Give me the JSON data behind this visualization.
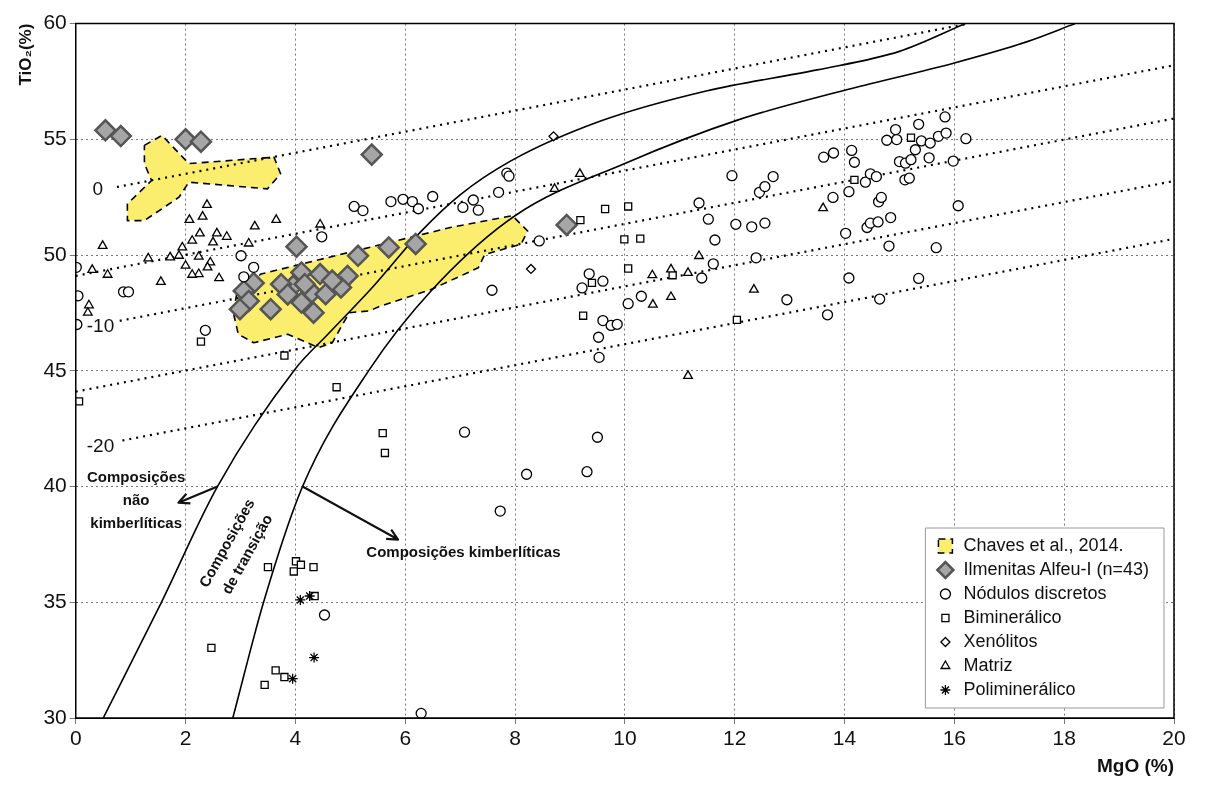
{
  "chart_data": {
    "type": "scatter",
    "xlabel": "MgO (%)",
    "ylabel": "TiO₂(%)",
    "xlim": [
      0,
      20
    ],
    "ylim": [
      30,
      60
    ],
    "xticks": [
      0,
      2,
      4,
      6,
      8,
      10,
      12,
      14,
      16,
      18,
      20
    ],
    "yticks": [
      30,
      35,
      40,
      45,
      50,
      55,
      60
    ],
    "grid": true,
    "legend": "bottom right",
    "annotations": [
      "0",
      "-10",
      "-20",
      {
        "text": "Composições\nnão\nkimberlíticas",
        "x": 2.58,
        "y": 40
      },
      "Composições\nde transição",
      {
        "text": "Composições kimberlíticas",
        "x": 4.13,
        "y": 40
      }
    ],
    "series": [
      {
        "name": "Chaves et al., 2014.",
        "type": "area",
        "color": "#fbee6e",
        "marker": "none",
        "line_style": "dashed",
        "x": [
          2.87,
          2.93,
          3.37,
          6.84,
          7.95,
          8.23,
          8.11,
          7.45,
          7.33,
          6.46,
          5.53,
          5.35,
          4.98,
          4.67,
          4.42,
          3.86,
          3.24,
          2.96,
          2.87
        ],
        "values": [
          47.51,
          48.31,
          49.18,
          51.2,
          51.7,
          51.04,
          50.47,
          50.03,
          49.45,
          48.5,
          47.78,
          47.59,
          47.51,
          46.21,
          46.0,
          46.58,
          46.21,
          46.58,
          47.51
        ]
      },
      {
        "type": "area",
        "color": "#fbee6e",
        "marker": "none",
        "line_style": "dashed",
        "x": [
          1.25,
          1.57,
          2.06,
          3.61,
          3.73,
          3.49,
          2.06,
          1.88,
          1.25,
          0.94,
          0.94,
          1.38,
          1.25,
          1.25
        ],
        "values": [
          54.74,
          55.17,
          53.95,
          54.23,
          53.51,
          52.86,
          53.15,
          52.5,
          51.49,
          51.49,
          52.21,
          53.22,
          53.95,
          54.74
        ]
      },
      {
        "type": "line",
        "color": "#000000",
        "marker": "none",
        "line_style": "solid",
        "x": [
          0.5,
          1.56,
          2.58,
          3.99,
          4.6,
          5.4,
          6.28,
          7.0,
          7.95,
          9.57,
          11.5,
          13.5,
          15.0,
          16.2
        ],
        "values": [
          30,
          35,
          40,
          45.06,
          46.6,
          48.6,
          51.0,
          52.6,
          54.1,
          55.8,
          57.1,
          58.0,
          58.8,
          60
        ]
      },
      {
        "type": "line",
        "color": "#000000",
        "marker": "none",
        "line_style": "solid",
        "x": [
          2.86,
          3.42,
          4.13,
          5.35,
          6.47,
          8.0,
          10.0,
          12.05,
          13.97,
          16.0,
          17.3,
          18.2
        ],
        "values": [
          30,
          35,
          40,
          45.06,
          48.45,
          51.7,
          53.96,
          55.83,
          57.1,
          58.3,
          59.2,
          60
        ]
      },
      {
        "type": "line",
        "color": "#000000",
        "marker": "none",
        "line_style": "dotted",
        "x": [
          0.75,
          16.26
        ],
        "values": [
          52.94,
          60
        ]
      },
      {
        "type": "line",
        "color": "#000000",
        "marker": "none",
        "line_style": "dotted",
        "x": [
          0,
          20
        ],
        "values": [
          49.1,
          58.2
        ]
      },
      {
        "type": "line",
        "color": "#000000",
        "marker": "none",
        "line_style": "dotted",
        "x": [
          0.8,
          20
        ],
        "values": [
          47.16,
          55.9
        ]
      },
      {
        "type": "line",
        "color": "#000000",
        "marker": "none",
        "line_style": "dotted",
        "x": [
          0,
          20
        ],
        "values": [
          44.1,
          53.2
        ]
      },
      {
        "type": "line",
        "color": "#000000",
        "marker": "none",
        "line_style": "dotted",
        "x": [
          0.85,
          20
        ],
        "values": [
          41.99,
          50.7
        ]
      },
      {
        "name": "Ilmenitas Alfeu-I (n=43)",
        "color": "#a6a6a6",
        "marker": "diamond",
        "x": [
          0.54,
          0.82,
          2.0,
          2.28,
          5.39,
          4.02,
          5.14,
          5.7,
          6.19,
          3.24,
          3.06,
          3.15,
          2.99,
          3.55,
          4.11,
          4.45,
          4.95,
          4.83,
          3.96,
          4.3,
          4.55,
          4.11,
          4.33,
          4.17,
          8.94,
          3.74,
          4.67,
          3.86
        ],
        "values": [
          55.39,
          55.14,
          55.0,
          54.9,
          54.34,
          50.36,
          49.97,
          50.33,
          50.48,
          48.79,
          48.45,
          48.02,
          47.66,
          47.66,
          49.25,
          49.18,
          49.1,
          48.6,
          48.67,
          48.38,
          48.31,
          47.95,
          47.51,
          48.74,
          51.3,
          48.74,
          48.9,
          48.3
        ]
      },
      {
        "name": "Nódulos discretos",
        "color": "#000000",
        "marker": "circle",
        "x": [
          0.01,
          0.04,
          0.87,
          0.96,
          3.01,
          3.24,
          3.06,
          2.36,
          4.48,
          5.07,
          5.23,
          5.74,
          5.96,
          6.13,
          6.24,
          6.5,
          0.02,
          7.05,
          7.24,
          7.33,
          7.7,
          7.85,
          7.89,
          8.44,
          7.58,
          7.08,
          8.21,
          9.31,
          9.5,
          9.35,
          9.22,
          9.6,
          9.6,
          9.75,
          9.86,
          9.52,
          9.53,
          10.06,
          10.3,
          11.35,
          11.52,
          11.64,
          12.02,
          12.31,
          12.55,
          11.95,
          12.45,
          12.55,
          12.7,
          11.4,
          11.61,
          12.39,
          12.95,
          13.62,
          13.8,
          14.13,
          14.18,
          13.79,
          14.08,
          14.38,
          14.47,
          14.58,
          14.62,
          14.67,
          14.02,
          14.41,
          14.47,
          14.61,
          14.84,
          14.81,
          15.67,
          14.08,
          15.35,
          14.64,
          13.69,
          14.77,
          14.93,
          14.95,
          15.0,
          15.11,
          15.21,
          15.35,
          15.29,
          15.4,
          15.56,
          15.54,
          15.1,
          15.18,
          15.71,
          15.83,
          15.85,
          15.98,
          16.21,
          16.07,
          4.53,
          6.29,
          7.73
        ],
        "values": [
          49.47,
          48.24,
          48.41,
          48.41,
          49.97,
          49.47,
          49.06,
          46.75,
          50.79,
          52.1,
          51.92,
          52.31,
          52.41,
          52.31,
          52.0,
          52.53,
          47.0,
          52.06,
          52.38,
          51.94,
          52.71,
          53.54,
          53.41,
          50.61,
          48.48,
          42.35,
          40.53,
          40.64,
          42.13,
          49.19,
          48.58,
          48.87,
          47.17,
          46.96,
          47.01,
          46.45,
          45.58,
          47.9,
          48.22,
          52.25,
          51.55,
          50.65,
          51.33,
          51.22,
          51.38,
          53.43,
          52.71,
          52.96,
          53.39,
          49.01,
          49.62,
          49.88,
          48.07,
          54.23,
          54.41,
          54.52,
          54.01,
          52.49,
          52.74,
          53.15,
          53.51,
          53.39,
          52.3,
          52.49,
          50.94,
          51.19,
          51.38,
          51.43,
          51.62,
          50.39,
          50.32,
          49.01,
          48.99,
          48.1,
          47.42,
          54.96,
          55.42,
          54.99,
          54.04,
          53.97,
          54.12,
          55.65,
          54.55,
          54.93,
          54.84,
          54.2,
          53.25,
          53.32,
          55.13,
          55.97,
          55.27,
          54.06,
          55.03,
          52.13,
          34.45,
          30.2,
          38.94
        ]
      },
      {
        "name": "Biminerálico",
        "color": "#000000",
        "marker": "square",
        "x": [
          2.28,
          3.8,
          4.75,
          0.06,
          5.59,
          5.63,
          9.19,
          9.64,
          10.06,
          9.99,
          10.28,
          10.06,
          9.4,
          9.24,
          10.87,
          12.04,
          15.21,
          14.18,
          2.47,
          3.5,
          4.01,
          4.1,
          4.33,
          3.97,
          4.35,
          3.64,
          3.8,
          3.44
        ],
        "values": [
          46.26,
          45.66,
          44.29,
          43.68,
          42.31,
          41.45,
          51.51,
          51.99,
          52.1,
          50.68,
          50.71,
          49.42,
          48.8,
          47.38,
          49.13,
          47.2,
          55.07,
          53.25,
          33.03,
          36.52,
          36.77,
          36.62,
          36.52,
          36.33,
          35.27,
          32.06,
          31.77,
          31.43
        ]
      },
      {
        "name": "Xenólitos",
        "color": "#000000",
        "marker": "diamond",
        "x": [
          8.7,
          8.29
        ],
        "values": [
          55.13,
          49.4
        ]
      },
      {
        "name": "Matriz",
        "color": "#000000",
        "marker": "triangle",
        "x": [
          0.49,
          0.3,
          0.58,
          0.24,
          0.22,
          1.55,
          1.32,
          1.72,
          1.88,
          2.0,
          2.24,
          2.39,
          2.31,
          2.07,
          2.26,
          2.12,
          1.94,
          2.57,
          2.75,
          2.5,
          2.24,
          2.12,
          2.45,
          2.4,
          2.61,
          3.15,
          3.26,
          3.65,
          4.45,
          8.72,
          9.18,
          10.5,
          10.84,
          10.51,
          10.84,
          11.15,
          11.35,
          11.15,
          12.35,
          13.61
        ],
        "values": [
          50.4,
          49.36,
          49.15,
          47.83,
          47.51,
          48.84,
          49.86,
          49.9,
          49.97,
          49.54,
          49.93,
          52.17,
          51.66,
          51.52,
          50.94,
          50.62,
          50.33,
          50.94,
          50.79,
          50.55,
          49.18,
          49.15,
          49.68,
          49.47,
          49.0,
          50.5,
          51.24,
          51.52,
          51.32,
          52.86,
          53.51,
          49.13,
          49.38,
          47.86,
          48.19,
          49.23,
          49.96,
          44.78,
          48.51,
          52.03
        ]
      },
      {
        "name": "Poliminerálico",
        "color": "#000000",
        "marker": "cross",
        "x": [
          4.09,
          4.26,
          4.34,
          3.95
        ],
        "values": [
          35.1,
          35.27,
          32.61,
          31.7
        ]
      }
    ]
  }
}
